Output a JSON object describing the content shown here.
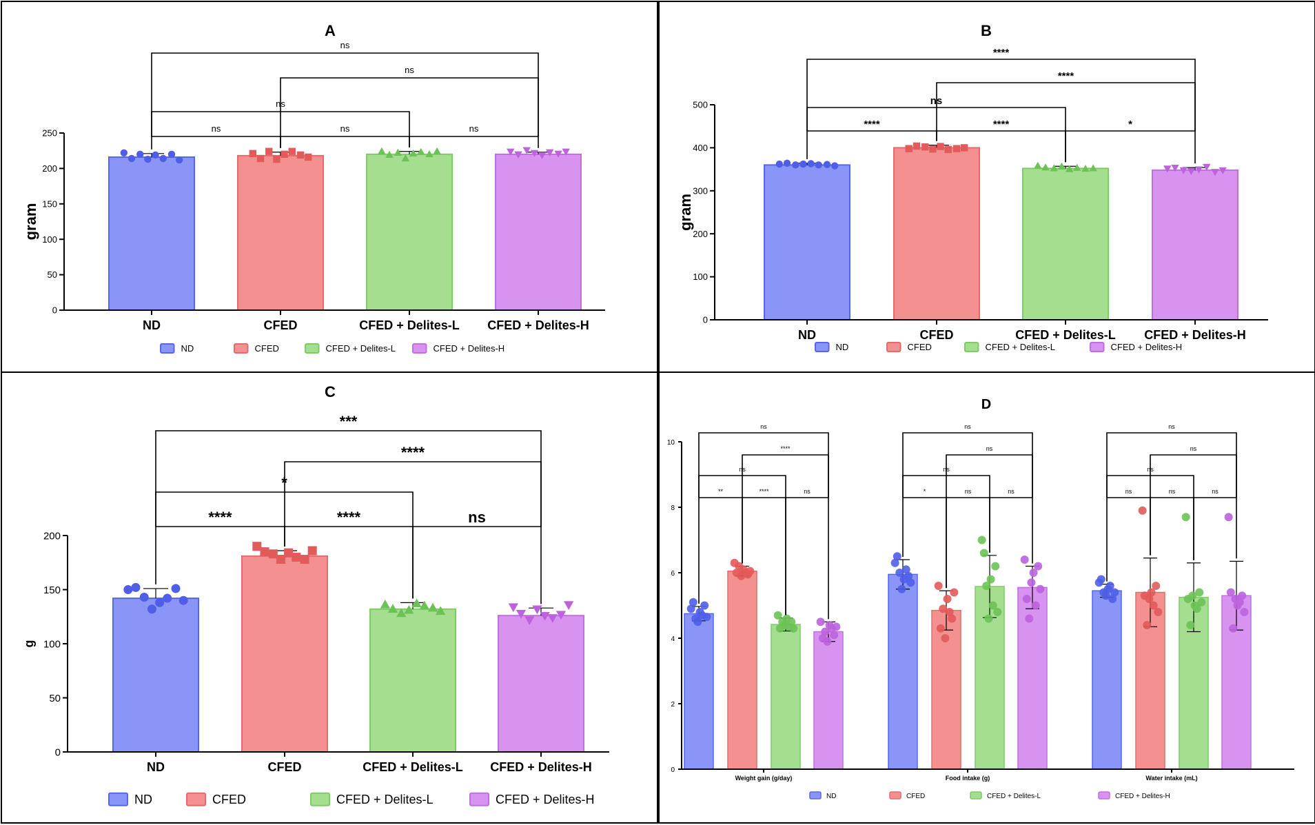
{
  "groups": [
    "ND",
    "CFED",
    "CFED + Delites-L",
    "CFED + Delites-H"
  ],
  "colors": {
    "ND": {
      "fill": "#8a96f7",
      "stroke": "#5666ea",
      "dot": "#4f5ee6"
    },
    "CFED": {
      "fill": "#f39090",
      "stroke": "#e66a6a",
      "dot": "#e25a5a"
    },
    "DL": {
      "fill": "#a3df8f",
      "stroke": "#7dcc66",
      "dot": "#6cc255"
    },
    "DH": {
      "fill": "#d893f0",
      "stroke": "#c06ee0",
      "dot": "#bb63dd"
    }
  },
  "chart_data": [
    {
      "id": "A",
      "type": "bar",
      "title": "A",
      "ylabel": "gram",
      "xlabel": "",
      "ylim": [
        0,
        250
      ],
      "yticks": [
        0,
        50,
        100,
        150,
        200,
        250
      ],
      "categories": [
        "ND",
        "CFED",
        "CFED + Delites-L",
        "CFED + Delites-H"
      ],
      "values": [
        216,
        218,
        220,
        220
      ],
      "errors": [
        5,
        5,
        4,
        3
      ],
      "points": [
        [
          222,
          214,
          220,
          213,
          219,
          214,
          220,
          212
        ],
        [
          221,
          214,
          224,
          213,
          220,
          224,
          219,
          216
        ],
        [
          224,
          219,
          222,
          214,
          221,
          223,
          220,
          224
        ],
        [
          224,
          220,
          226,
          222,
          219,
          223,
          221,
          224
        ]
      ],
      "legend": [
        "ND",
        "CFED",
        "CFED + Delites-L",
        "CFED + Delites-H"
      ],
      "comparisons": [
        {
          "from": 0,
          "to": 3,
          "label": "ns"
        },
        {
          "from": 1,
          "to": 3,
          "label": "ns"
        },
        {
          "from": 0,
          "to": 2,
          "label": "ns"
        },
        {
          "from": 0,
          "to": 1,
          "label": "ns"
        },
        {
          "from": 1,
          "to": 2,
          "label": "ns"
        },
        {
          "from": 2,
          "to": 3,
          "label": "ns"
        }
      ]
    },
    {
      "id": "B",
      "type": "bar",
      "title": "B",
      "ylabel": "gram",
      "xlabel": "",
      "ylim": [
        0,
        500
      ],
      "yticks": [
        0,
        100,
        200,
        300,
        400,
        500
      ],
      "categories": [
        "ND",
        "CFED",
        "CFED + Delites-L",
        "CFED + Delites-H"
      ],
      "values": [
        360,
        400,
        352,
        348
      ],
      "errors": [
        4,
        6,
        5,
        6
      ],
      "points": [
        [
          362,
          364,
          360,
          362,
          363,
          360,
          361,
          358
        ],
        [
          398,
          404,
          402,
          397,
          403,
          396,
          398,
          400
        ],
        [
          358,
          354,
          352,
          356,
          350,
          353,
          351,
          352
        ],
        [
          352,
          354,
          348,
          346,
          350,
          356,
          344,
          348
        ]
      ],
      "legend": [
        "ND",
        "CFED",
        "CFED + Delites-L",
        "CFED + Delites-H"
      ],
      "comparisons": [
        {
          "from": 0,
          "to": 3,
          "label": "****"
        },
        {
          "from": 1,
          "to": 3,
          "label": "****"
        },
        {
          "from": 0,
          "to": 2,
          "label": "ns"
        },
        {
          "from": 0,
          "to": 1,
          "label": "****"
        },
        {
          "from": 1,
          "to": 2,
          "label": "****"
        },
        {
          "from": 2,
          "to": 3,
          "label": "*"
        }
      ]
    },
    {
      "id": "C",
      "type": "bar",
      "title": "C",
      "ylabel": "g",
      "xlabel": "",
      "ylim": [
        0,
        200
      ],
      "yticks": [
        0,
        50,
        100,
        150,
        200
      ],
      "categories": [
        "ND",
        "CFED",
        "CFED + Delites-L",
        "CFED + Delites-H"
      ],
      "values": [
        142,
        181,
        132,
        126
      ],
      "errors": [
        9,
        5,
        6,
        7
      ],
      "points": [
        [
          150,
          152,
          143,
          132,
          138,
          142,
          151,
          140
        ],
        [
          190,
          185,
          183,
          178,
          184,
          180,
          178,
          186
        ],
        [
          136,
          132,
          128,
          131,
          137,
          135,
          133,
          130
        ],
        [
          134,
          128,
          122,
          132,
          126,
          124,
          127,
          136
        ]
      ],
      "legend": [
        "ND",
        "CFED",
        "CFED + Delites-L",
        "CFED + Delites-H"
      ],
      "comparisons": [
        {
          "from": 0,
          "to": 3,
          "label": "***"
        },
        {
          "from": 1,
          "to": 3,
          "label": "****"
        },
        {
          "from": 0,
          "to": 2,
          "label": "*"
        },
        {
          "from": 0,
          "to": 1,
          "label": "****"
        },
        {
          "from": 1,
          "to": 2,
          "label": "****"
        },
        {
          "from": 2,
          "to": 3,
          "label": "ns"
        }
      ]
    },
    {
      "id": "D",
      "type": "bar",
      "title": "D",
      "ylabel": "",
      "xlabel": "",
      "ylim": [
        0,
        10
      ],
      "yticks": [
        0,
        2,
        4,
        6,
        8,
        10
      ],
      "categories": [
        "Weight gain (g/day)",
        "Food intake (g)",
        "Water intake (mL)"
      ],
      "series": [
        {
          "name": "ND",
          "values": [
            4.75,
            5.95,
            5.45
          ],
          "errors": [
            0.22,
            0.45,
            0.2
          ],
          "points": [
            [
              4.9,
              5.1,
              4.6,
              4.5,
              4.8,
              4.7,
              5.0,
              4.65
            ],
            [
              6.3,
              6.5,
              6.0,
              5.5,
              5.8,
              6.1,
              5.9,
              5.7
            ],
            [
              5.7,
              5.8,
              5.4,
              5.3,
              5.5,
              5.6,
              5.2,
              5.4
            ]
          ]
        },
        {
          "name": "CFED",
          "values": [
            6.05,
            4.85,
            5.4
          ],
          "errors": [
            0.15,
            0.6,
            1.05
          ],
          "points": [
            [
              6.3,
              6.0,
              6.2,
              5.9,
              6.1,
              6.0,
              5.95,
              6.05
            ],
            [
              5.6,
              4.3,
              4.9,
              4.0,
              5.2,
              4.8,
              4.6,
              5.4
            ],
            [
              7.9,
              5.3,
              4.4,
              5.2,
              5.4,
              5.0,
              5.6,
              4.8
            ]
          ]
        },
        {
          "name": "CFED + Delites-L",
          "values": [
            4.42,
            5.58,
            5.25
          ],
          "errors": [
            0.2,
            0.95,
            1.05
          ],
          "points": [
            [
              4.7,
              4.3,
              4.5,
              4.4,
              4.6,
              4.35,
              4.5,
              4.3
            ],
            [
              7.0,
              6.6,
              5.6,
              4.6,
              5.8,
              5.0,
              6.2,
              4.8
            ],
            [
              7.7,
              5.2,
              4.4,
              5.3,
              5.0,
              4.9,
              5.4,
              5.1
            ]
          ]
        },
        {
          "name": "CFED + Delites-H",
          "values": [
            4.2,
            5.55,
            5.3
          ],
          "errors": [
            0.3,
            0.65,
            1.05
          ],
          "points": [
            [
              4.5,
              4.0,
              4.2,
              3.9,
              4.4,
              4.3,
              4.1,
              4.35
            ],
            [
              6.4,
              5.2,
              4.6,
              5.7,
              6.0,
              5.0,
              6.2,
              5.5
            ],
            [
              7.7,
              5.4,
              4.3,
              5.2,
              5.0,
              5.1,
              5.3,
              4.8
            ]
          ]
        }
      ],
      "legend": [
        "ND",
        "CFED",
        "CFED + Delites-L",
        "CFED + Delites-H"
      ],
      "comparisons": [
        [
          {
            "from": 0,
            "to": 3,
            "label": "ns"
          },
          {
            "from": 1,
            "to": 3,
            "label": "****"
          },
          {
            "from": 0,
            "to": 2,
            "label": "ns"
          },
          {
            "from": 0,
            "to": 1,
            "label": "**"
          },
          {
            "from": 1,
            "to": 2,
            "label": "****"
          },
          {
            "from": 2,
            "to": 3,
            "label": "ns"
          }
        ],
        [
          {
            "from": 0,
            "to": 3,
            "label": "ns"
          },
          {
            "from": 1,
            "to": 3,
            "label": "ns"
          },
          {
            "from": 0,
            "to": 2,
            "label": "ns"
          },
          {
            "from": 0,
            "to": 1,
            "label": "*"
          },
          {
            "from": 1,
            "to": 2,
            "label": "ns"
          },
          {
            "from": 2,
            "to": 3,
            "label": "ns"
          }
        ],
        [
          {
            "from": 0,
            "to": 3,
            "label": "ns"
          },
          {
            "from": 1,
            "to": 3,
            "label": "ns"
          },
          {
            "from": 0,
            "to": 2,
            "label": "ns"
          },
          {
            "from": 0,
            "to": 1,
            "label": "ns"
          },
          {
            "from": 1,
            "to": 2,
            "label": "ns"
          },
          {
            "from": 2,
            "to": 3,
            "label": "ns"
          }
        ]
      ]
    }
  ]
}
